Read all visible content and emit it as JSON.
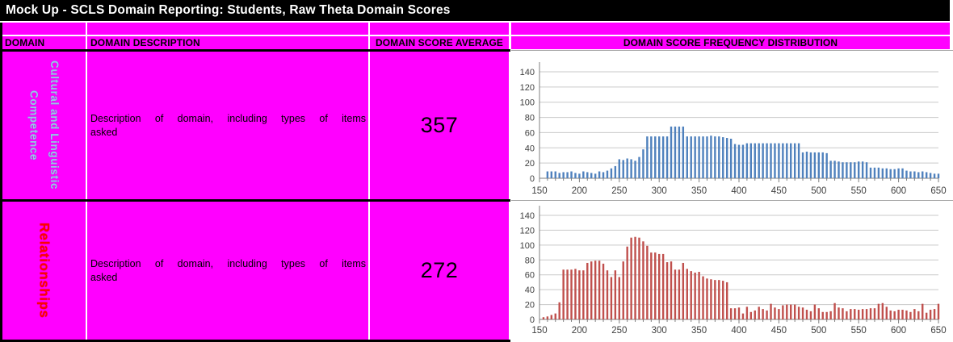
{
  "title": "Mock Up - SCLS Domain Reporting: Students, Raw Theta Domain Scores",
  "colors": {
    "titlebar_bg": "#000000",
    "titlebar_text": "#FFFFFF",
    "table_bg": "#FF00FF",
    "header_text": "#000000",
    "row1_domain_text": "#9DC3E6",
    "row2_domain_text": "#FF0000",
    "row1_bars": "#4F81BD",
    "row2_bars": "#C0504D"
  },
  "headers": {
    "domain": "DOMAIN",
    "description": "DOMAIN DESCRIPTION",
    "average": "DOMAIN SCORE AVERAGE",
    "distribution": "DOMAIN SCORE FREQUENCY DISTRIBUTION"
  },
  "rows": [
    {
      "domain": "Cultural and Linguistic Competence",
      "domain_lines": [
        "Cultural and Linguistic",
        "Competence"
      ],
      "domain_color": "#9DC3E6",
      "description": "Description of domain, including types of items asked",
      "description_lines": [
        "Description of domain, including types of items",
        "asked"
      ],
      "average": "357"
    },
    {
      "domain": "Relationships",
      "domain_lines": [
        "Relationships"
      ],
      "domain_color": "#FF0000",
      "description": "Description of domain, including types of items asked",
      "description_lines": [
        "Description of domain, including types of items",
        "asked"
      ],
      "average": "272"
    }
  ],
  "chart_data": [
    {
      "type": "bar",
      "title": "",
      "xlabel": "",
      "ylabel": "",
      "series_name": "Cultural and Linguistic Competence frequency",
      "bar_color": "#4F81BD",
      "xlim": [
        150,
        650
      ],
      "ylim": [
        0,
        140
      ],
      "x_tick_labels": [
        150,
        200,
        250,
        300,
        350,
        400,
        450,
        500,
        550,
        600,
        650
      ],
      "y_tick_labels": [
        0,
        20,
        40,
        60,
        80,
        100,
        120,
        140
      ],
      "x_minor_tick": 10,
      "grid": true,
      "legend": "none",
      "x_start": 160,
      "x_step": 5,
      "values": [
        9,
        9,
        9,
        7,
        8,
        8,
        9,
        7,
        6,
        9,
        8,
        7,
        6,
        9,
        8,
        10,
        13,
        16,
        25,
        24,
        26,
        25,
        23,
        28,
        38,
        55,
        55,
        55,
        55,
        55,
        55,
        68,
        68,
        68,
        68,
        55,
        55,
        55,
        55,
        55,
        55,
        56,
        55,
        55,
        54,
        53,
        52,
        45,
        44,
        44,
        46,
        46,
        46,
        46,
        46,
        46,
        46,
        46,
        46,
        46,
        46,
        46,
        46,
        46,
        34,
        35,
        34,
        34,
        34,
        34,
        33,
        23,
        23,
        22,
        21,
        21,
        21,
        21,
        22,
        22,
        21,
        14,
        14,
        14,
        13,
        13,
        12,
        12,
        13,
        13,
        10,
        9,
        9,
        8,
        9,
        8,
        7,
        6,
        6
      ]
    },
    {
      "type": "bar",
      "title": "",
      "xlabel": "",
      "ylabel": "",
      "series_name": "Relationships frequency",
      "bar_color": "#C0504D",
      "xlim": [
        150,
        650
      ],
      "ylim": [
        0,
        140
      ],
      "x_tick_labels": [
        150,
        200,
        250,
        300,
        350,
        400,
        450,
        500,
        550,
        600,
        650
      ],
      "y_tick_labels": [
        0,
        20,
        40,
        60,
        80,
        100,
        120,
        140
      ],
      "x_minor_tick": 10,
      "grid": true,
      "legend": "none",
      "x_start": 155,
      "x_step": 5,
      "values": [
        3,
        4,
        6,
        8,
        23,
        67,
        67,
        67,
        68,
        66,
        66,
        76,
        78,
        79,
        79,
        75,
        66,
        57,
        66,
        57,
        78,
        98,
        110,
        111,
        110,
        105,
        99,
        90,
        90,
        88,
        88,
        77,
        78,
        67,
        67,
        76,
        68,
        65,
        63,
        64,
        58,
        55,
        54,
        53,
        53,
        52,
        50,
        15,
        15,
        16,
        8,
        17,
        10,
        12,
        17,
        14,
        12,
        21,
        16,
        14,
        19,
        20,
        20,
        20,
        17,
        16,
        13,
        11,
        20,
        15,
        10,
        10,
        11,
        22,
        16,
        15,
        11,
        14,
        14,
        13,
        14,
        14,
        15,
        15,
        21,
        22,
        17,
        12,
        11,
        13,
        13,
        12,
        10,
        14,
        11,
        21,
        9,
        13,
        14,
        21
      ]
    }
  ]
}
